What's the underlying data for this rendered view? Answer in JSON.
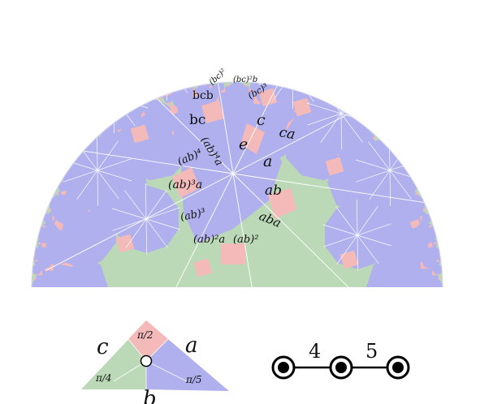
{
  "tiling": {
    "colors": {
      "decagon": "#b0b0ef",
      "octagon": "#bbd9b6",
      "square": "#f4b9b9",
      "edge": "#ffffff"
    },
    "labels": {
      "e": "e",
      "a": "a",
      "ab": "ab",
      "aba": "aba",
      "ab2": "(ab)²",
      "ab2a": "(ab)²a",
      "ab3": "(ab)³",
      "ab3a": "(ab)³a",
      "ab4": "(ab)⁴",
      "ab4a": "(ab)⁴a",
      "c": "c",
      "ca": "ca",
      "bc": "bc",
      "bcb": "bcb",
      "bc2": "(bc)²",
      "bc2b": "(bc)²b",
      "bc3": "(bc)³"
    }
  },
  "triangle": {
    "label_a": "a",
    "label_b": "b",
    "label_c": "c",
    "angle_top": "π/2",
    "angle_left": "π/4",
    "angle_right": "π/5",
    "colors": {
      "left": "#bbd9b6",
      "right": "#b0b0ef",
      "top": "#f4b9b9"
    }
  },
  "coxeter": {
    "label_4": "4",
    "label_5": "5"
  }
}
